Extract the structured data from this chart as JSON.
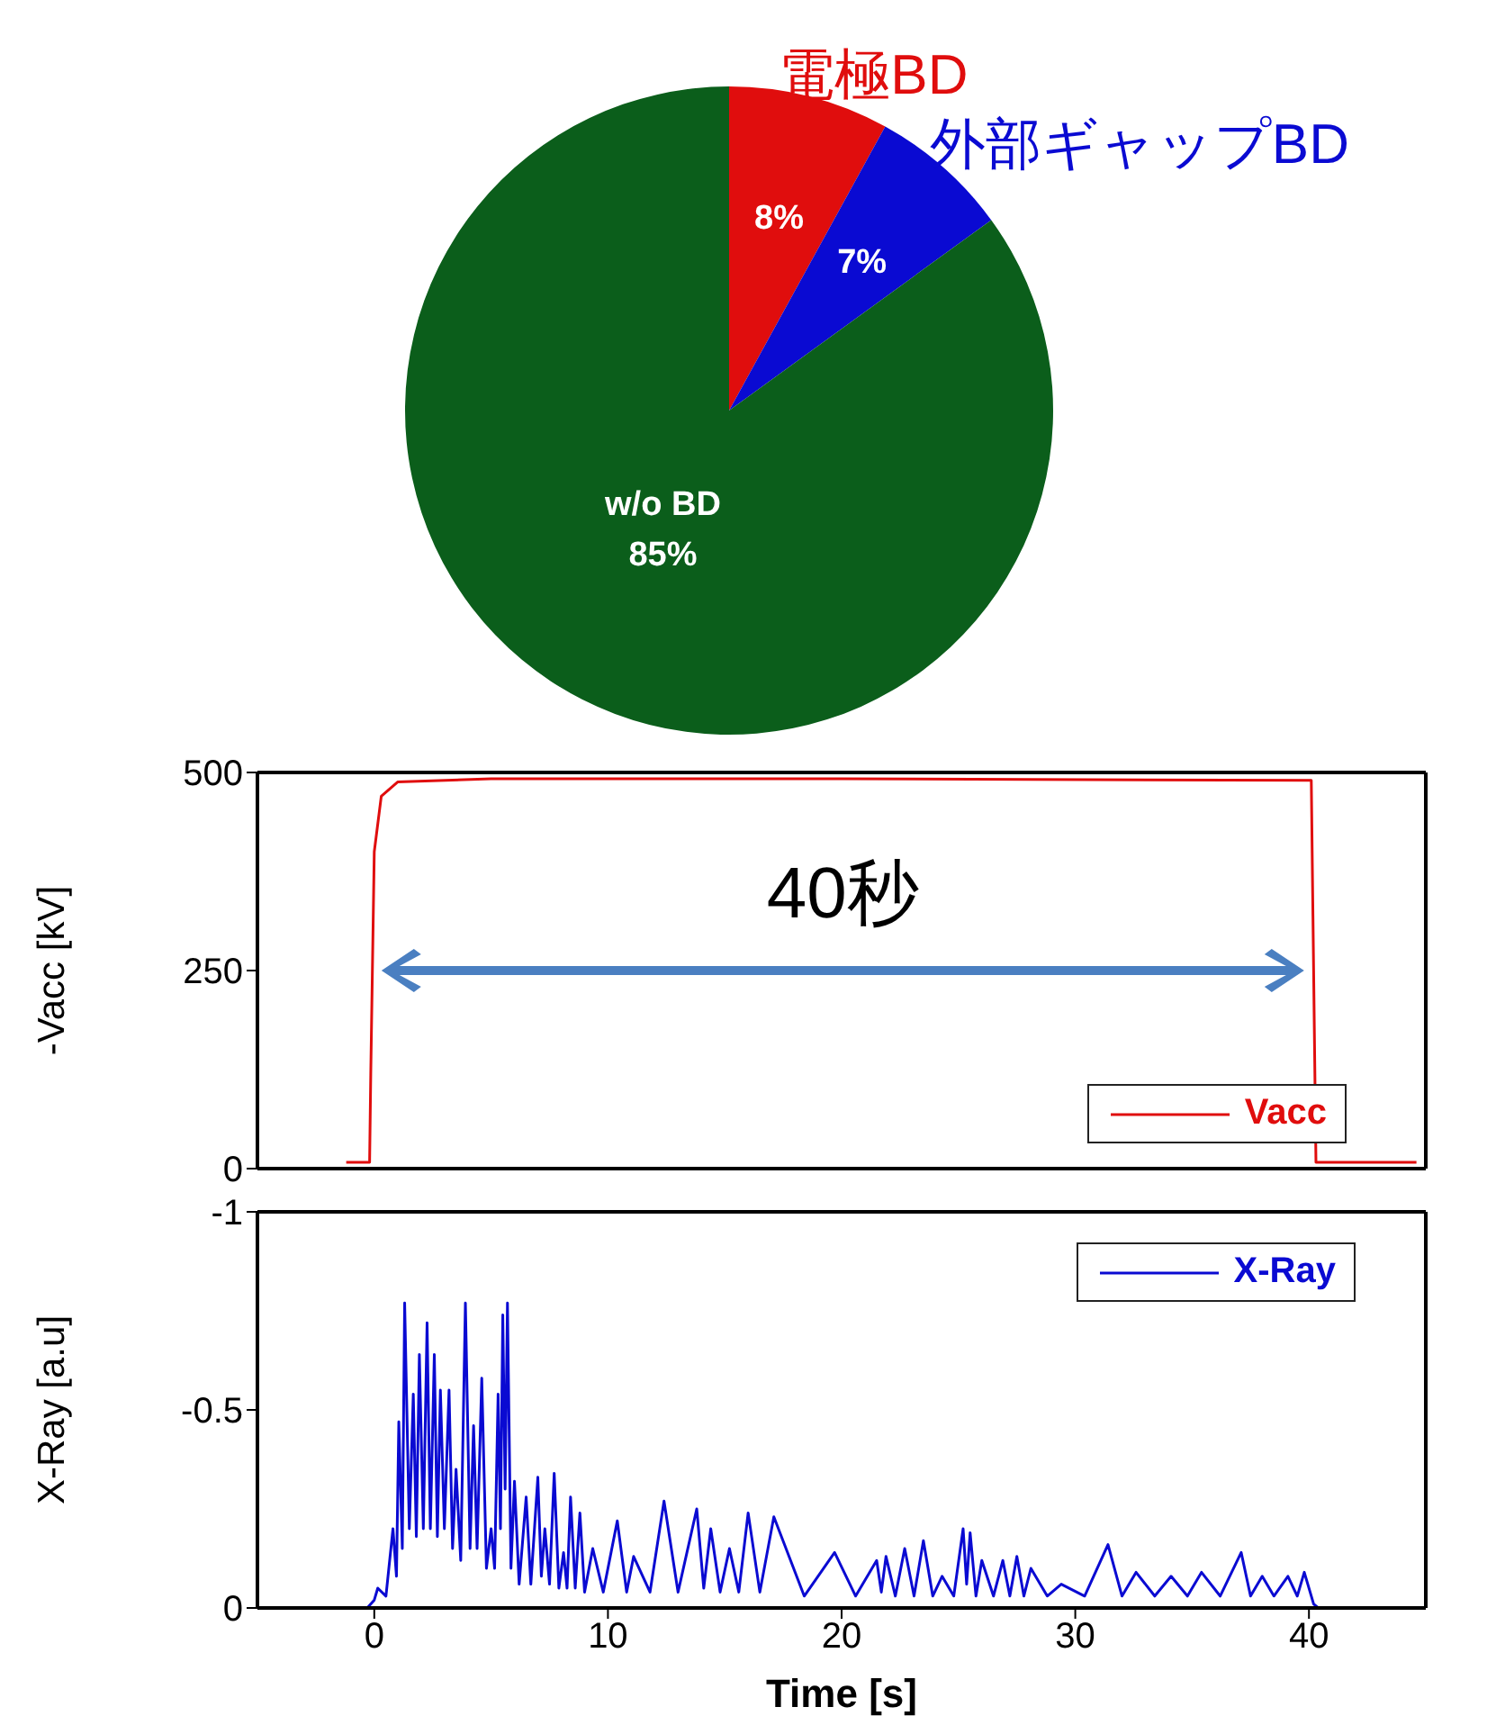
{
  "chart_data": [
    {
      "type": "pie",
      "categories": [
        "電極BD",
        "外部ギャップBD",
        "w/o BD"
      ],
      "values": [
        8,
        7,
        85
      ],
      "colors": [
        "#e00d0d",
        "#0a0ad2",
        "#0b5e1b"
      ],
      "value_labels": [
        "8%",
        "7%",
        "85%"
      ]
    },
    {
      "type": "line",
      "ylabel": "-Vacc [kV]",
      "xlim": [
        -5,
        45
      ],
      "ylim": [
        0,
        500
      ],
      "yticks": [
        0,
        250,
        500
      ],
      "tick_labels": "y",
      "legend": "bottom right",
      "grid": false,
      "marker": "none",
      "line_style": "solid",
      "annotations": [
        "40秒"
      ],
      "series": [
        {
          "name": "Vacc",
          "color": "#e00d0d",
          "x": [
            -1.2,
            -0.2,
            -0.15,
            0,
            0.3,
            1,
            5,
            20,
            40.1,
            40.3,
            44.6
          ],
          "values": [
            8,
            8,
            120,
            400,
            470,
            488,
            492,
            492,
            490,
            8,
            8
          ]
        }
      ]
    },
    {
      "type": "line",
      "xlabel": "Time [s]",
      "ylabel": "X-Ray [a.u]",
      "xlim": [
        -5,
        45
      ],
      "xticks": [
        0,
        10,
        20,
        30,
        40
      ],
      "ylim": [
        0,
        -1
      ],
      "yticks": [
        -1,
        -0.5,
        0
      ],
      "legend": "top right",
      "grid": false,
      "marker": "none",
      "line_style": "solid",
      "series": [
        {
          "name": "X-Ray",
          "color": "#0a0ad2",
          "x": [
            -0.3,
            0,
            0.15,
            0.5,
            0.8,
            0.95,
            1.05,
            1.2,
            1.3,
            1.5,
            1.67,
            1.8,
            1.93,
            2.1,
            2.26,
            2.4,
            2.57,
            2.7,
            2.83,
            3.0,
            3.2,
            3.35,
            3.5,
            3.7,
            3.9,
            4.1,
            4.25,
            4.4,
            4.6,
            4.8,
            5.0,
            5.15,
            5.3,
            5.4,
            5.5,
            5.6,
            5.7,
            5.85,
            6.0,
            6.2,
            6.5,
            6.7,
            7.0,
            7.15,
            7.3,
            7.5,
            7.7,
            7.9,
            8.1,
            8.25,
            8.4,
            8.6,
            8.8,
            9.0,
            9.35,
            9.8,
            10.4,
            10.8,
            11.1,
            11.8,
            12.4,
            13.0,
            13.8,
            14.1,
            14.4,
            14.8,
            15.2,
            15.6,
            16.0,
            16.5,
            17.1,
            18.4,
            19.7,
            20.6,
            21.5,
            21.7,
            21.9,
            22.3,
            22.7,
            23.1,
            23.5,
            23.9,
            24.3,
            24.8,
            25.2,
            25.35,
            25.5,
            25.75,
            26.0,
            26.5,
            26.9,
            27.2,
            27.5,
            27.8,
            28.1,
            28.8,
            29.4,
            30.4,
            31.4,
            32.0,
            32.6,
            33.4,
            34.1,
            34.8,
            35.4,
            36.2,
            37.1,
            37.5,
            38.0,
            38.5,
            39.1,
            39.5,
            39.8,
            40.2,
            40.4
          ],
          "values": [
            0,
            -0.02,
            -0.05,
            -0.03,
            -0.2,
            -0.08,
            -0.47,
            -0.15,
            -0.77,
            -0.2,
            -0.54,
            -0.18,
            -0.64,
            -0.2,
            -0.72,
            -0.2,
            -0.64,
            -0.18,
            -0.55,
            -0.2,
            -0.55,
            -0.15,
            -0.35,
            -0.12,
            -0.77,
            -0.15,
            -0.46,
            -0.15,
            -0.58,
            -0.1,
            -0.2,
            -0.1,
            -0.54,
            -0.2,
            -0.74,
            -0.3,
            -0.77,
            -0.1,
            -0.32,
            -0.06,
            -0.28,
            -0.06,
            -0.33,
            -0.08,
            -0.2,
            -0.06,
            -0.34,
            -0.05,
            -0.14,
            -0.05,
            -0.28,
            -0.05,
            -0.24,
            -0.04,
            -0.15,
            -0.04,
            -0.22,
            -0.04,
            -0.13,
            -0.04,
            -0.27,
            -0.04,
            -0.25,
            -0.05,
            -0.2,
            -0.04,
            -0.15,
            -0.04,
            -0.24,
            -0.04,
            -0.23,
            -0.03,
            -0.14,
            -0.03,
            -0.12,
            -0.04,
            -0.13,
            -0.03,
            -0.15,
            -0.03,
            -0.17,
            -0.03,
            -0.08,
            -0.03,
            -0.2,
            -0.06,
            -0.19,
            -0.03,
            -0.12,
            -0.03,
            -0.12,
            -0.03,
            -0.13,
            -0.03,
            -0.1,
            -0.03,
            -0.06,
            -0.03,
            -0.16,
            -0.03,
            -0.09,
            -0.03,
            -0.08,
            -0.03,
            -0.09,
            -0.03,
            -0.14,
            -0.03,
            -0.08,
            -0.03,
            -0.08,
            -0.03,
            -0.09,
            -0.01,
            0
          ]
        }
      ]
    }
  ]
}
